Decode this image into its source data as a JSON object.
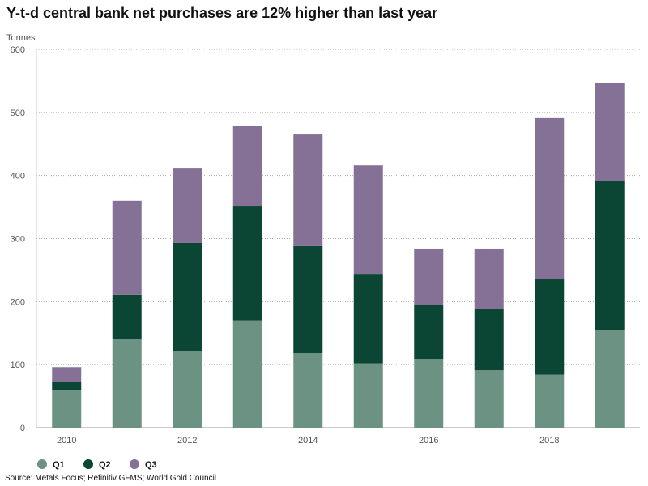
{
  "title": "Y-t-d central bank net purchases are 12% higher than last year",
  "source": "Source: Metals Focus; Refinitiv GFMS; World Gold Council",
  "chart_data": {
    "type": "bar",
    "stacked": true,
    "title": "Y-t-d central bank net purchases are 12% higher than last year",
    "ylabel": "Tonnes",
    "xlabel": "",
    "ylim": [
      0,
      600
    ],
    "yticks": [
      0,
      100,
      200,
      300,
      400,
      500,
      600
    ],
    "categories": [
      "2010",
      "2011",
      "2012",
      "2013",
      "2014",
      "2015",
      "2016",
      "2017",
      "2018",
      "2019"
    ],
    "xtick_labels": [
      "2010",
      "",
      "2012",
      "",
      "2014",
      "",
      "2016",
      "",
      "2018",
      ""
    ],
    "grid": true,
    "legend_position": "bottom-left",
    "series": [
      {
        "name": "Q1",
        "color": "#6b9282",
        "values": [
          59,
          141,
          122,
          170,
          118,
          102,
          109,
          91,
          84,
          155
        ]
      },
      {
        "name": "Q2",
        "color": "#0b4533",
        "values": [
          14,
          70,
          171,
          182,
          170,
          142,
          85,
          97,
          152,
          236
        ]
      },
      {
        "name": "Q3",
        "color": "#867196",
        "values": [
          23,
          149,
          118,
          127,
          177,
          172,
          90,
          96,
          255,
          156
        ]
      }
    ]
  }
}
